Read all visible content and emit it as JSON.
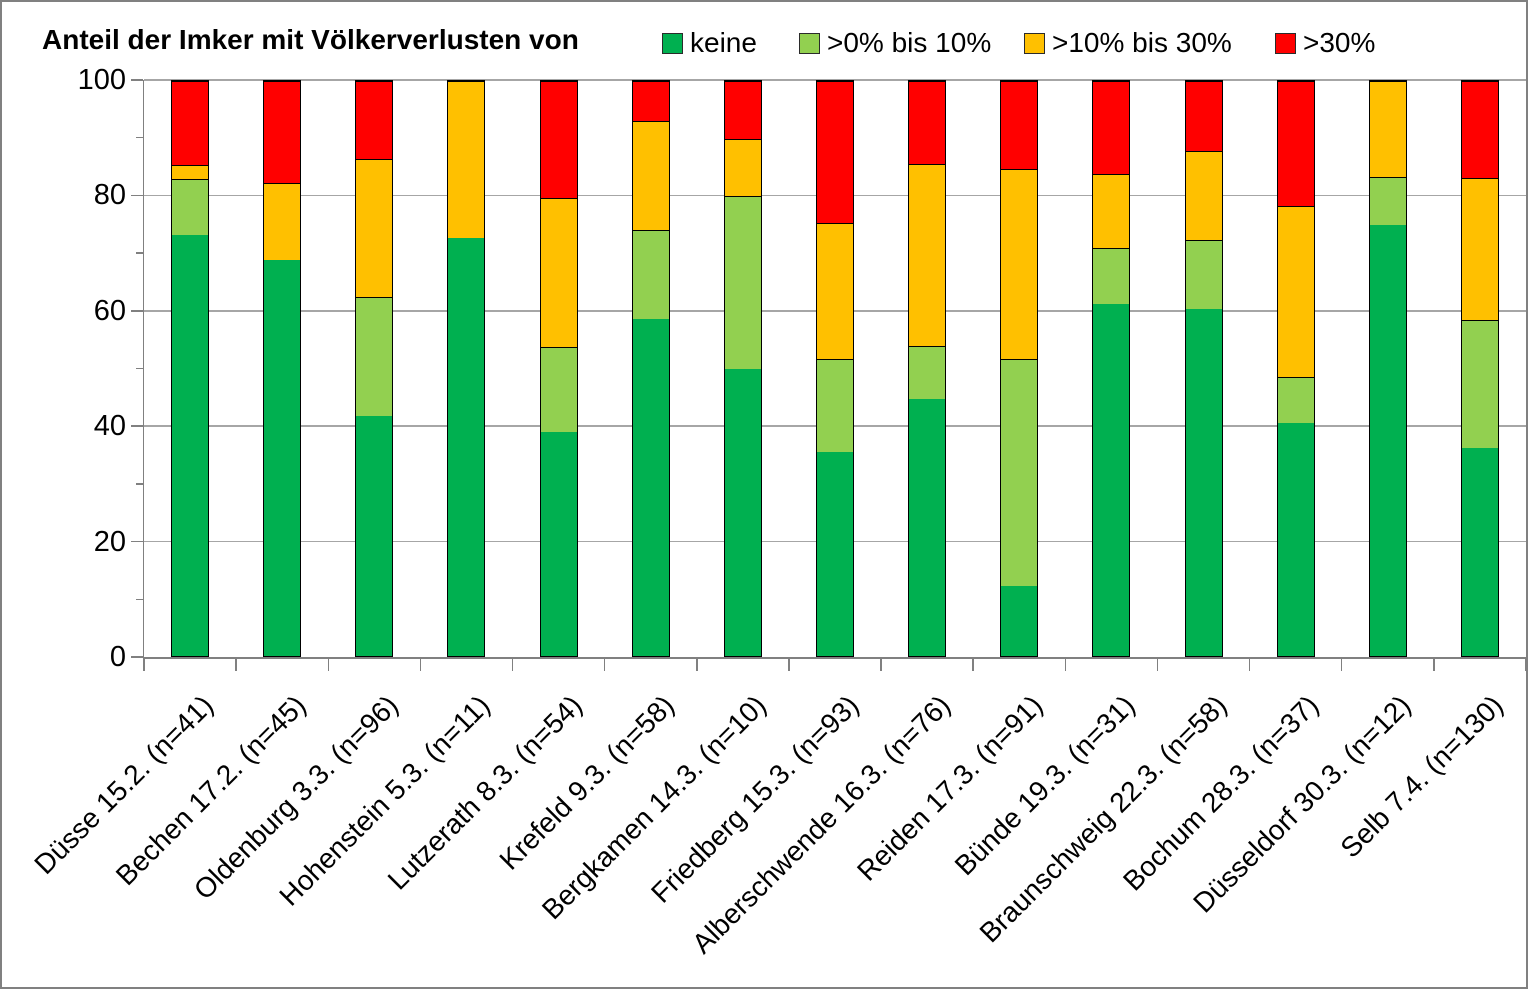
{
  "chart_data": {
    "type": "bar",
    "stacked": true,
    "title": "Anteil der Imker mit Völkerverlusten von",
    "xlabel": "",
    "ylabel": "",
    "ylim": [
      0,
      100
    ],
    "y_major_ticks": [
      0,
      20,
      40,
      60,
      80,
      100
    ],
    "y_minor_ticks": [
      10,
      30,
      50,
      70,
      90
    ],
    "grid": "horizontal",
    "legend_position": "top",
    "categories": [
      "Düsse 15.2. (n=41)",
      "Bechen 17.2. (n=45)",
      "Oldenburg 3.3. (n=96)",
      "Hohenstein 5.3. (n=11)",
      "Lutzerath 8.3. (n=54)",
      "Krefeld 9.3. (n=58)",
      "Bergkamen 14.3. (n=10)",
      "Friedberg 15.3. (n=93)",
      "Alberschwende 16.3. (n=76)",
      "Reiden 17.3. (n=91)",
      "Bünde 19.3. (n=31)",
      "Braunschweig 22.3. (n=58)",
      "Bochum 28.3. (n=37)",
      "Düsseldorf 30.3. (n=12)",
      "Selb 7.4. (n=130)"
    ],
    "series": [
      {
        "name": "keine",
        "color": "#00B050",
        "values": [
          73.2,
          68.9,
          41.7,
          72.7,
          38.9,
          58.6,
          50.0,
          35.5,
          44.7,
          12.1,
          61.3,
          60.3,
          40.5,
          75.0,
          36.2
        ]
      },
      {
        "name": ">0% bis 10%",
        "color": "#92D050",
        "values": [
          9.8,
          0.0,
          20.8,
          0.0,
          14.8,
          15.5,
          30.0,
          16.1,
          9.2,
          39.6,
          9.7,
          12.1,
          8.1,
          8.3,
          22.3
        ]
      },
      {
        "name": ">10% bis 30%",
        "color": "#FFC000",
        "values": [
          2.4,
          13.3,
          24.0,
          27.3,
          25.9,
          19.0,
          10.0,
          23.7,
          31.6,
          33.0,
          12.9,
          15.5,
          29.7,
          16.7,
          24.6
        ]
      },
      {
        "name": ">30%",
        "color": "#FF0000",
        "values": [
          14.6,
          17.8,
          13.5,
          0.0,
          20.4,
          6.9,
          10.0,
          24.7,
          14.5,
          15.3,
          16.1,
          12.1,
          21.7,
          0.0,
          16.9
        ]
      }
    ],
    "style": {
      "grid_color": "#A6A6A6",
      "axis_color": "#808080",
      "chart_border_color": "#808080",
      "bar_border_color": "#000000",
      "text_color": "#000000"
    }
  }
}
